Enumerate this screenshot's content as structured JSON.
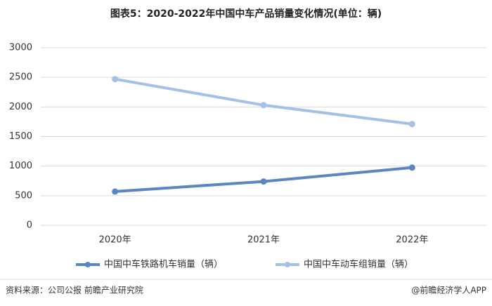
{
  "chart_data": {
    "type": "line",
    "title": "图表5：2020-2022年中国中车产品销量变化情况(单位：辆)",
    "categories": [
      "2020年",
      "2021年",
      "2022年"
    ],
    "series": [
      {
        "name": "中国中车铁路机车销量（辆）",
        "color": "#5b86c0",
        "values": [
          570,
          740,
          975
        ]
      },
      {
        "name": "中国中车动车组销量（辆）",
        "color": "#a5c0e6",
        "values": [
          2470,
          2030,
          1710
        ]
      }
    ],
    "ylim": [
      0,
      3000
    ],
    "yticks": [
      0,
      500,
      1000,
      1500,
      2000,
      2500,
      3000
    ],
    "grid": true,
    "legend": "bottom"
  },
  "source": "资料来源：公司公报 前瞻产业研究院",
  "credit": "@前瞻经济学人APP"
}
